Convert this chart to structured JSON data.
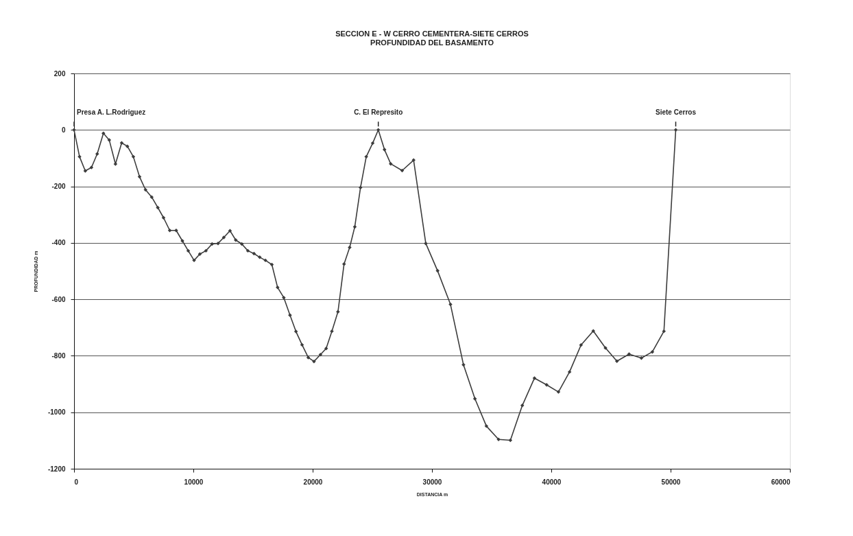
{
  "chart_data": {
    "type": "line",
    "title": "SECCION E - W CERRO CEMENTERA-SIETE CERROS",
    "subtitle": "PROFUNDIDAD DEL BASAMENTO",
    "xlabel": "DISTANCIA m",
    "ylabel": "PROFUNDIDAD m",
    "x": [
      0,
      460,
      940,
      1460,
      1940,
      2460,
      2950,
      3470,
      3990,
      4470,
      4970,
      5490,
      5990,
      6510,
      7020,
      7500,
      8020,
      8560,
      9080,
      9570,
      10060,
      10540,
      11050,
      11570,
      12070,
      12550,
      13070,
      13550,
      14060,
      14570,
      15080,
      15560,
      16040,
      16580,
      17060,
      17580,
      18100,
      18600,
      19110,
      19630,
      20110,
      20650,
      21130,
      21610,
      22120,
      22630,
      23100,
      23530,
      24010,
      24490,
      25030,
      25500,
      26020,
      26540,
      27500,
      28460,
      29480,
      30470,
      31550,
      32640,
      33600,
      34560,
      35580,
      36570,
      37570,
      38590,
      39610,
      40600,
      41530,
      42490,
      43520,
      44540,
      45500,
      46520,
      47550,
      48470,
      49440,
      50430
    ],
    "series": [
      {
        "color": "#3c3c3c",
        "values": [
          0,
          -95,
          -145,
          -133,
          -85,
          -12,
          -36,
          -121,
          -46,
          -58,
          -95,
          -166,
          -212,
          -238,
          -275,
          -311,
          -356,
          -356,
          -393,
          -428,
          -462,
          -440,
          -428,
          -404,
          -402,
          -381,
          -357,
          -390,
          -404,
          -428,
          -438,
          -451,
          -462,
          -477,
          -558,
          -594,
          -656,
          -714,
          -761,
          -806,
          -820,
          -796,
          -774,
          -713,
          -644,
          -475,
          -416,
          -343,
          -204,
          -95,
          -47,
          0,
          -70,
          -120,
          -144,
          -107,
          -402,
          -499,
          -618,
          -832,
          -952,
          -1049,
          -1096,
          -1099,
          -976,
          -879,
          -903,
          -928,
          -857,
          -762,
          -712,
          -772,
          -819,
          -794,
          -808,
          -786,
          -713,
          0
        ]
      }
    ],
    "xlim": [
      0,
      60000
    ],
    "xticks": [
      0,
      10000,
      20000,
      30000,
      40000,
      50000,
      60000
    ],
    "ylim": [
      -1200,
      200
    ],
    "yticks": [
      -1200,
      -1000,
      -800,
      -600,
      -400,
      -200,
      0,
      200
    ],
    "grid": "y",
    "marker": "diamond",
    "line_style": "solid",
    "annotations": [
      {
        "text": "Presa A. L.Rodriguez",
        "x": 0,
        "y": 0
      },
      {
        "text": "C. El Represito",
        "x": 25500,
        "y": 0
      },
      {
        "text": "Siete Cerros",
        "x": 50430,
        "y": 0
      }
    ]
  }
}
